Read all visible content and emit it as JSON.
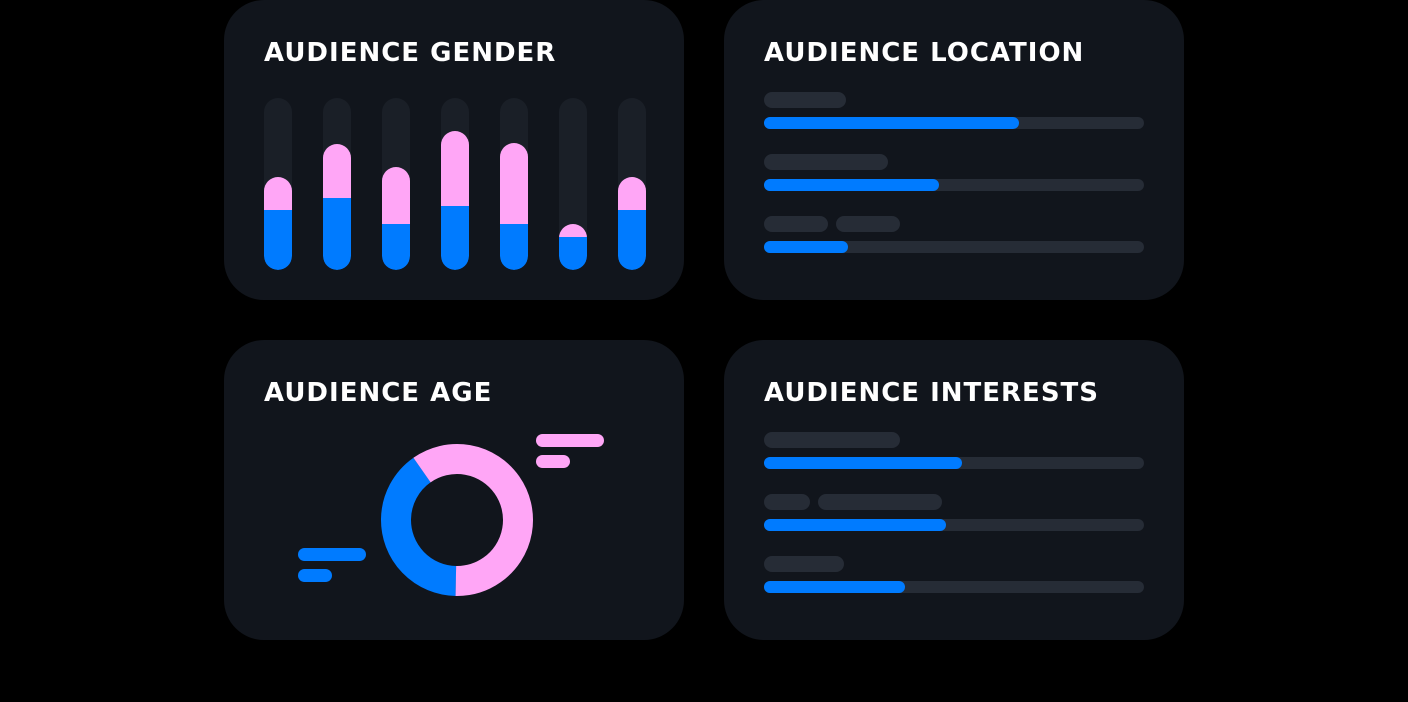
{
  "colors": {
    "background": "#000000",
    "card": "#11151c",
    "track": "#262c36",
    "primary_blue": "#007bff",
    "secondary_pink": "#ffa6f6"
  },
  "cards": {
    "gender": {
      "title": "AUDIENCE GENDER",
      "columns": [
        {
          "blue": 0.35,
          "pink": 0.19
        },
        {
          "blue": 0.42,
          "pink": 0.31
        },
        {
          "blue": 0.27,
          "pink": 0.33
        },
        {
          "blue": 0.37,
          "pink": 0.44
        },
        {
          "blue": 0.27,
          "pink": 0.47
        },
        {
          "blue": 0.19,
          "pink": 0.08
        },
        {
          "blue": 0.35,
          "pink": 0.19
        }
      ]
    },
    "location": {
      "title": "AUDIENCE LOCATION",
      "rows": [
        0.67,
        0.46,
        0.22
      ]
    },
    "age": {
      "title": "AUDIENCE AGE",
      "donut": {
        "pink": 0.6,
        "blue": 0.4
      }
    },
    "interests": {
      "title": "AUDIENCE INTERESTS",
      "rows": [
        0.52,
        0.48,
        0.37
      ]
    }
  }
}
